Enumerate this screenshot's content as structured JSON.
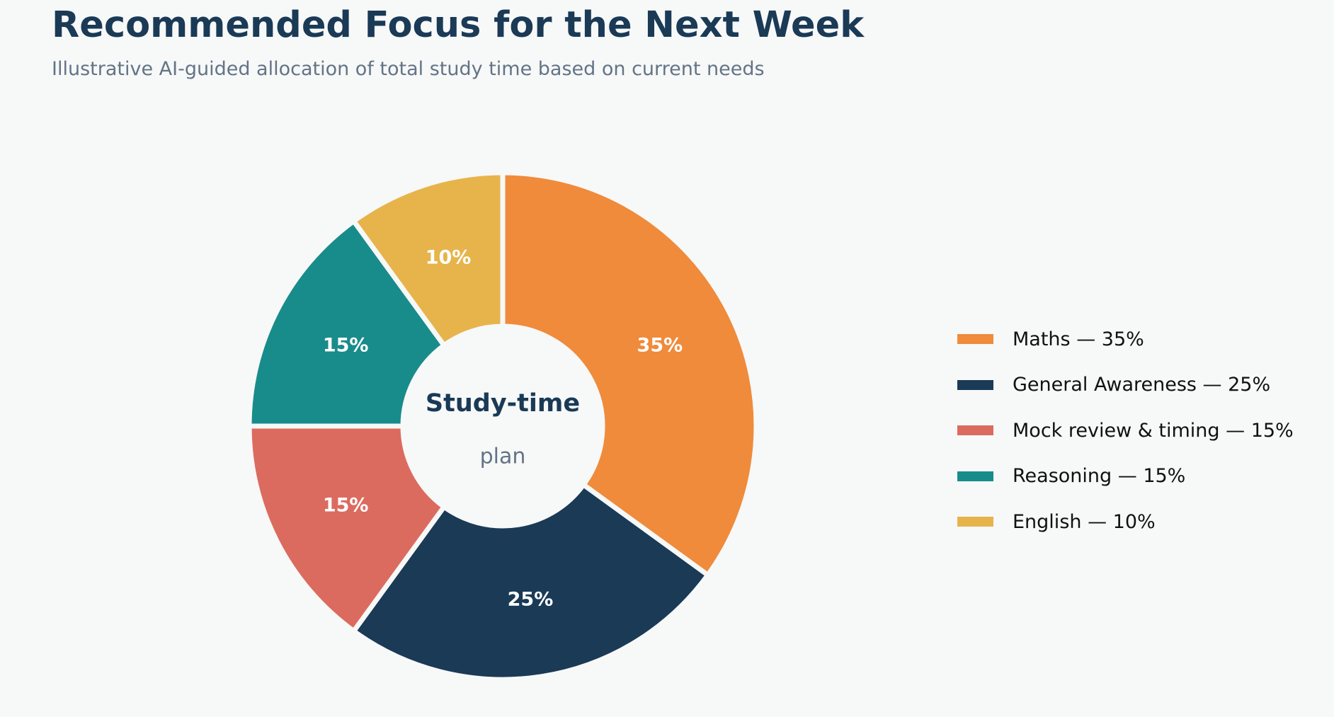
{
  "title": "Recommended Focus for the Next Week",
  "subtitle": "Illustrative AI-guided allocation of total study time based on current needs",
  "center": {
    "title": "Study-time",
    "subtitle": "plan"
  },
  "chart_data": {
    "type": "pie",
    "style": "donut",
    "title": "Recommended Focus for the Next Week",
    "subtitle": "Illustrative AI-guided allocation of total study time based on current needs",
    "slices": [
      {
        "label": "Maths",
        "value": 35,
        "color": "#ef8b3b",
        "pct_label": "35%",
        "legend": "Maths — 35%"
      },
      {
        "label": "General Awareness",
        "value": 25,
        "color": "#1a3a56",
        "pct_label": "25%",
        "legend": "General Awareness — 25%"
      },
      {
        "label": "Mock review & timing",
        "value": 15,
        "color": "#dc6b5f",
        "pct_label": "15%",
        "legend": "Mock review & timing — 15%"
      },
      {
        "label": "Reasoning",
        "value": 15,
        "color": "#188c8b",
        "pct_label": "15%",
        "legend": "Reasoning — 15%"
      },
      {
        "label": "English",
        "value": 10,
        "color": "#e7b44b",
        "pct_label": "10%",
        "legend": "English — 10%"
      }
    ],
    "start_angle": "top",
    "direction": "clockwise",
    "legend_position": "right"
  }
}
